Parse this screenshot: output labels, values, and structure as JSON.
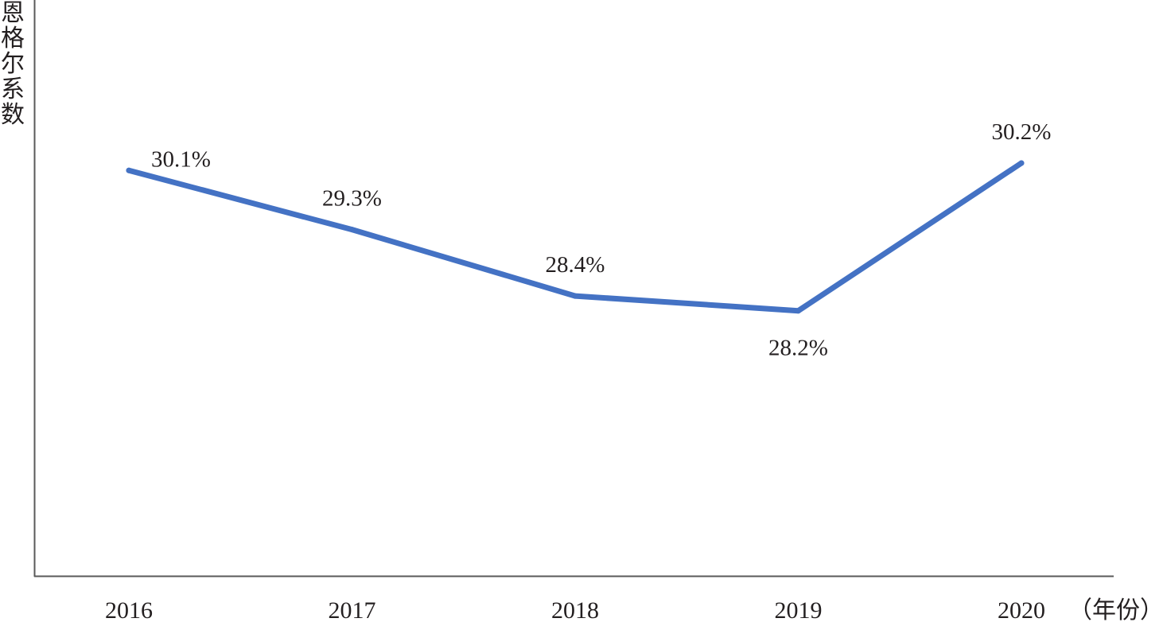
{
  "chart_data": {
    "type": "line",
    "title": "",
    "xlabel": "（年份）",
    "ylabel": "恩格尔系数",
    "categories": [
      "2016",
      "2017",
      "2018",
      "2019",
      "2020"
    ],
    "series": [
      {
        "values": [
          30.1,
          29.3,
          28.4,
          28.2,
          30.2
        ],
        "labels": [
          "30.1%",
          "29.3%",
          "28.4%",
          "28.2%",
          "30.2%"
        ],
        "color": "#4472c4"
      }
    ],
    "ylim": [
      24.6,
      30.9
    ],
    "grid": false,
    "legend": "none",
    "colors": {
      "axis": "#595959",
      "text": "#231f20",
      "line": "#4472c4"
    }
  }
}
